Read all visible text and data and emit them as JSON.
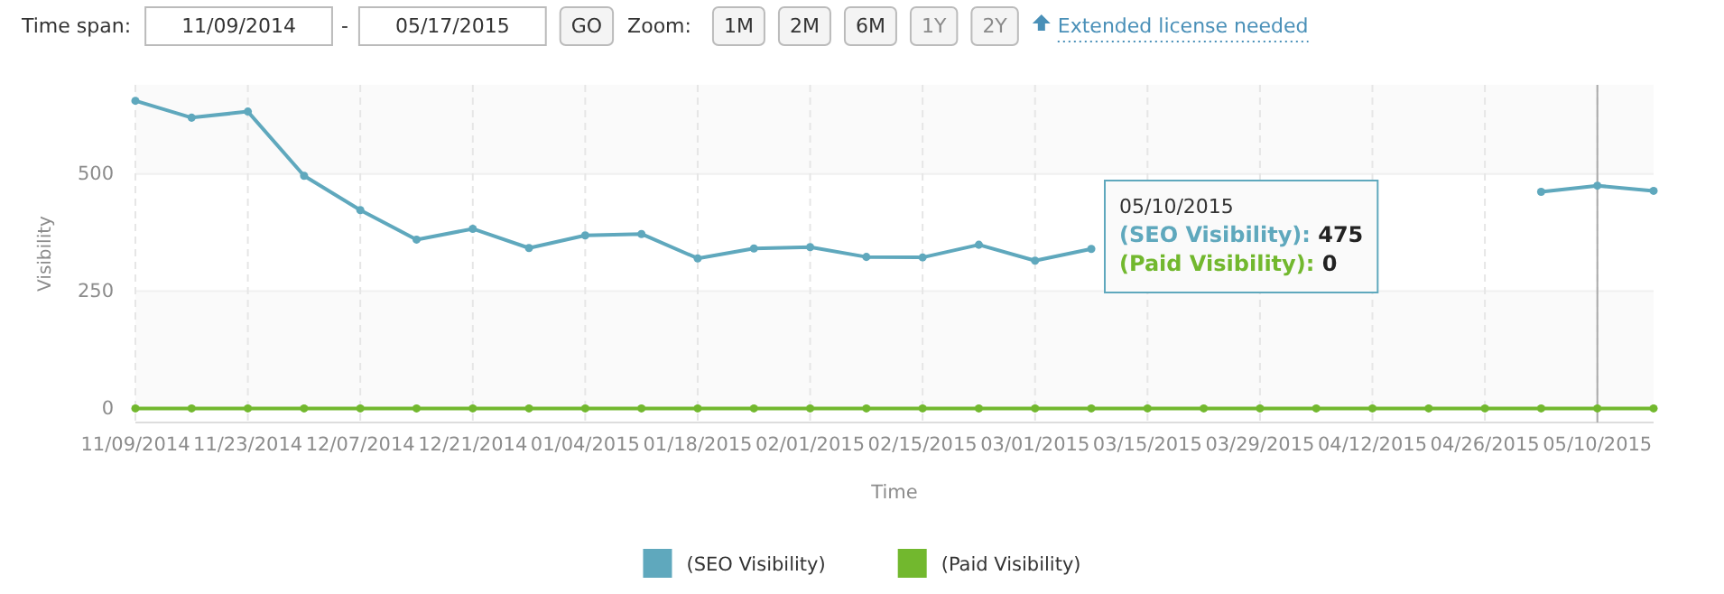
{
  "chart_data": {
    "type": "line",
    "xlabel": "Time",
    "ylabel": "Visibility",
    "x": [
      "2014-11-09",
      "2014-11-16",
      "2014-11-23",
      "2014-11-30",
      "2014-12-07",
      "2014-12-14",
      "2014-12-21",
      "2014-12-28",
      "2015-01-04",
      "2015-01-11",
      "2015-01-18",
      "2015-01-25",
      "2015-02-01",
      "2015-02-08",
      "2015-02-15",
      "2015-02-22",
      "2015-03-01",
      "2015-03-08",
      "2015-03-15",
      "2015-03-22",
      "2015-03-29",
      "2015-04-05",
      "2015-04-12",
      "2015-04-19",
      "2015-04-26",
      "2015-05-03",
      "2015-05-10",
      "2015-05-17"
    ],
    "series": [
      {
        "name": "(SEO Visibility)",
        "color": "#5fa8bd",
        "values": [
          656,
          620,
          633,
          496,
          423,
          360,
          383,
          342,
          369,
          372,
          320,
          341,
          344,
          323,
          322,
          349,
          315,
          340,
          null,
          null,
          null,
          null,
          null,
          null,
          null,
          462,
          475,
          464
        ]
      },
      {
        "name": "(Paid Visibility)",
        "color": "#72b82e",
        "values": [
          0,
          0,
          0,
          0,
          0,
          0,
          0,
          0,
          0,
          0,
          0,
          0,
          0,
          0,
          0,
          0,
          0,
          0,
          0,
          0,
          0,
          0,
          0,
          0,
          0,
          0,
          0,
          0
        ]
      }
    ],
    "xlim": [
      "2014-11-09",
      "2015-05-17"
    ],
    "xticks": [
      {
        "value": "2014-11-09",
        "label": "11/09/2014"
      },
      {
        "value": "2014-11-23",
        "label": "11/23/2014"
      },
      {
        "value": "2014-12-07",
        "label": "12/07/2014"
      },
      {
        "value": "2014-12-21",
        "label": "12/21/2014"
      },
      {
        "value": "2015-01-04",
        "label": "01/04/2015"
      },
      {
        "value": "2015-01-18",
        "label": "01/18/2015"
      },
      {
        "value": "2015-02-01",
        "label": "02/01/2015"
      },
      {
        "value": "2015-02-15",
        "label": "02/15/2015"
      },
      {
        "value": "2015-03-01",
        "label": "03/01/2015"
      },
      {
        "value": "2015-03-15",
        "label": "03/15/2015"
      },
      {
        "value": "2015-03-29",
        "label": "03/29/2015"
      },
      {
        "value": "2015-04-12",
        "label": "04/12/2015"
      },
      {
        "value": "2015-04-26",
        "label": "04/26/2015"
      },
      {
        "value": "2015-05-10",
        "label": "05/10/2015"
      }
    ],
    "ylim": [
      -30,
      690
    ],
    "yticks": [
      0,
      250,
      500
    ],
    "grid": true,
    "legend": "bottom",
    "marker": "circle",
    "line_style": "solid",
    "ref_lines": [
      {
        "axis": "x",
        "value": "2015-05-10",
        "color": "#aaaaaa"
      }
    ],
    "annotations": [
      "Time span:",
      "11/09/2014",
      "-",
      "05/17/2015",
      "GO",
      "Zoom:",
      "1M",
      "2M",
      "6M",
      "1Y",
      "2Y",
      "Extended license needed",
      "05/10/2015\n(SEO Visibility): 475\n(Paid Visibility): 0"
    ]
  }
}
